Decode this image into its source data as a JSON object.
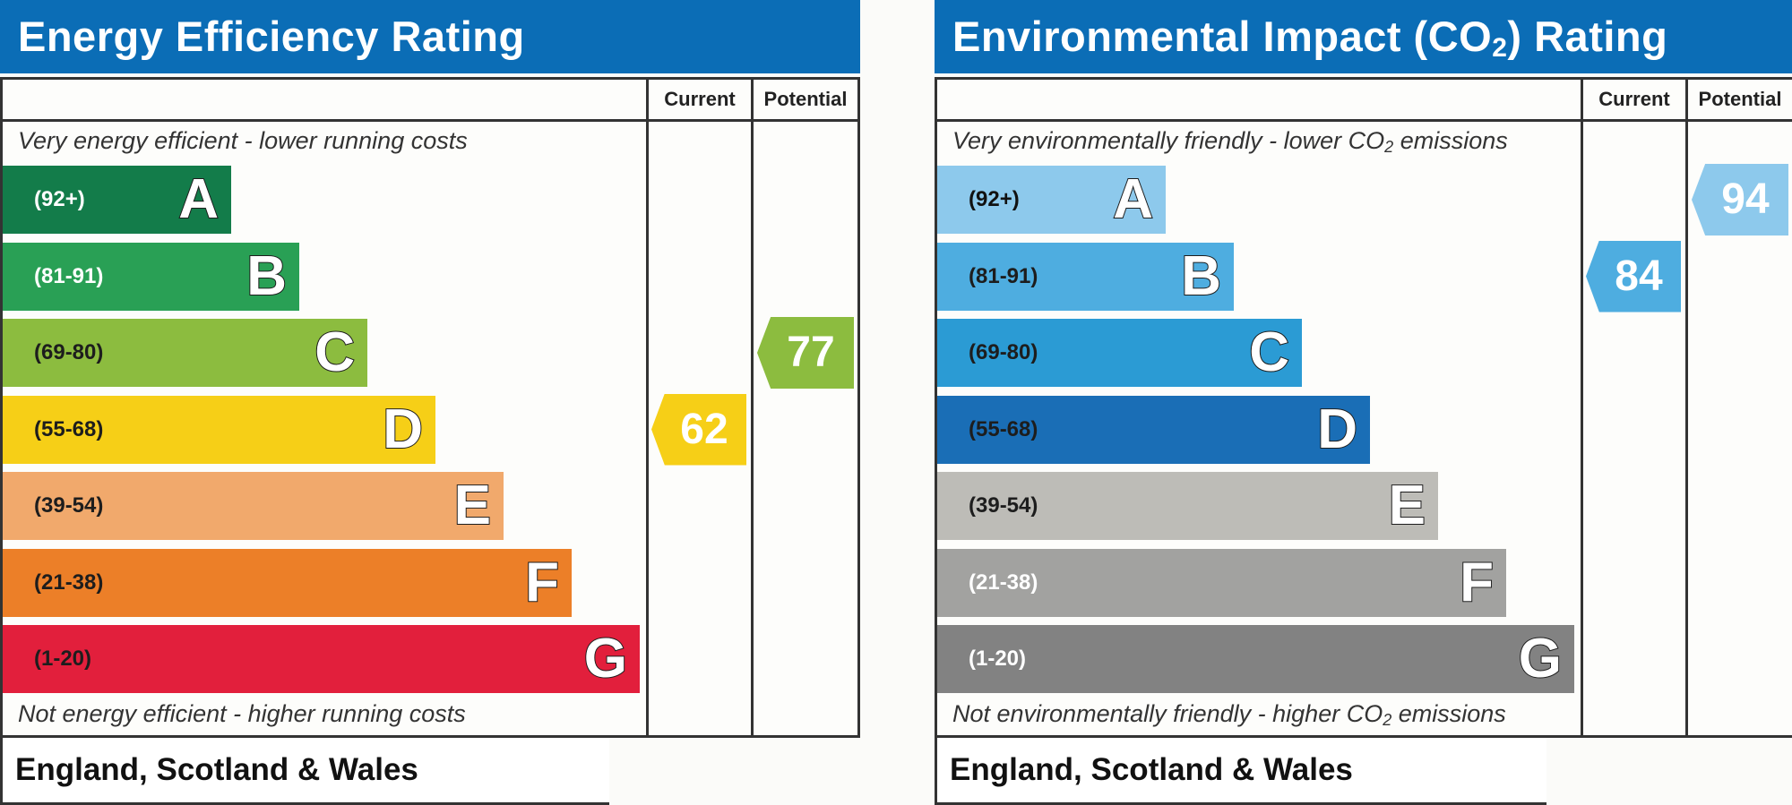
{
  "chart_data": [
    {
      "type": "bar",
      "title": "Energy Efficiency Rating",
      "columns": [
        "Current",
        "Potential"
      ],
      "top_text": "Very energy efficient - lower running costs",
      "bottom_text": "Not energy efficient - higher running costs",
      "footer": "England, Scotland & Wales",
      "bands": [
        {
          "letter": "A",
          "range": "(92+)",
          "color": "#137c4a",
          "text_color": "#ffffff"
        },
        {
          "letter": "B",
          "range": "(81-91)",
          "color": "#29a055",
          "text_color": "#ffffff"
        },
        {
          "letter": "C",
          "range": "(69-80)",
          "color": "#8cbc3f",
          "text_color": "#1d1d1d"
        },
        {
          "letter": "D",
          "range": "(55-68)",
          "color": "#f6cf17",
          "text_color": "#1d1d1d"
        },
        {
          "letter": "E",
          "range": "(39-54)",
          "color": "#f1a96c",
          "text_color": "#1d1d1d"
        },
        {
          "letter": "F",
          "range": "(21-38)",
          "color": "#ec7f28",
          "text_color": "#1d1d1d"
        },
        {
          "letter": "G",
          "range": "(1-20)",
          "color": "#e21f3c",
          "text_color": "#1d1d1d"
        }
      ],
      "current": {
        "value": "62",
        "band": "D",
        "color": "#f6cf17"
      },
      "potential": {
        "value": "77",
        "band": "C",
        "color": "#8cbc3f"
      }
    },
    {
      "type": "bar",
      "title_main": "Environmental Impact (CO",
      "title_sub": "2",
      "title_end": ") Rating",
      "columns": [
        "Current",
        "Potential"
      ],
      "top_text_main": "Very environmentally friendly - lower CO",
      "top_text_sub": "2",
      "top_text_end": " emissions",
      "bottom_text_main": "Not environmentally friendly - higher CO",
      "bottom_text_sub": "2",
      "bottom_text_end": " emissions",
      "footer": "England, Scotland & Wales",
      "bands": [
        {
          "letter": "A",
          "range": "(92+)",
          "color": "#8dc9ec",
          "text_color": "#111111"
        },
        {
          "letter": "B",
          "range": "(81-91)",
          "color": "#4eade0",
          "text_color": "#1d1d1d"
        },
        {
          "letter": "C",
          "range": "(69-80)",
          "color": "#2b9bd4",
          "text_color": "#1d1d1d"
        },
        {
          "letter": "D",
          "range": "(55-68)",
          "color": "#1a6eb6",
          "text_color": "#1d1d1d"
        },
        {
          "letter": "E",
          "range": "(39-54)",
          "color": "#bdbcb7",
          "text_color": "#1d1d1d"
        },
        {
          "letter": "F",
          "range": "(21-38)",
          "color": "#a2a2a0",
          "text_color": "#ffffff"
        },
        {
          "letter": "G",
          "range": "(1-20)",
          "color": "#828282",
          "text_color": "#ffffff"
        }
      ],
      "current": {
        "value": "84",
        "band": "B",
        "color": "#4eade0"
      },
      "potential": {
        "value": "94",
        "band": "A",
        "color": "#8dc9ec"
      }
    }
  ]
}
